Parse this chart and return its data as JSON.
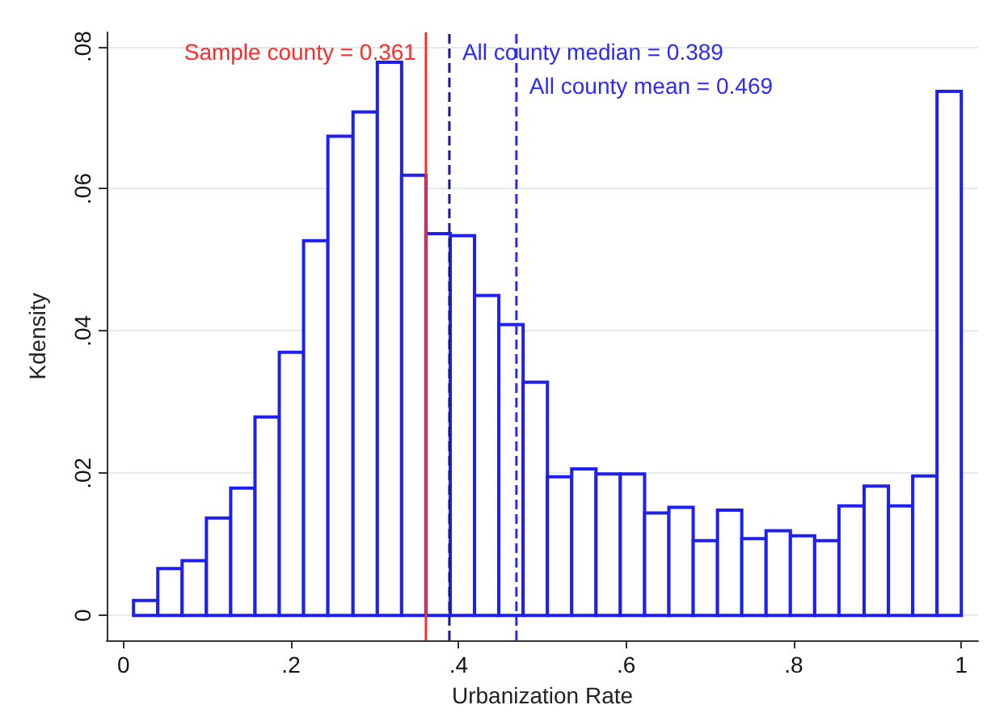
{
  "chart_data": {
    "type": "histogram",
    "xlabel": "Urbanization Rate",
    "ylabel": "Kdensity",
    "bins": [
      0.012,
      0.041,
      0.07,
      0.099,
      0.128,
      0.157,
      0.186,
      0.215,
      0.244,
      0.274,
      0.303,
      0.332,
      0.361,
      0.39,
      0.419,
      0.448,
      0.477,
      0.506,
      0.535,
      0.564,
      0.593,
      0.622,
      0.651,
      0.68,
      0.709,
      0.738,
      0.767,
      0.796,
      0.825,
      0.854,
      0.884,
      0.913,
      0.942,
      0.971,
      1.0
    ],
    "values": [
      0.0021,
      0.0066,
      0.0077,
      0.0137,
      0.0179,
      0.0279,
      0.037,
      0.0527,
      0.0674,
      0.0708,
      0.0778,
      0.0619,
      0.0537,
      0.0534,
      0.045,
      0.0409,
      0.0328,
      0.0195,
      0.0206,
      0.0199,
      0.0199,
      0.0144,
      0.0152,
      0.0105,
      0.0148,
      0.0108,
      0.0119,
      0.0112,
      0.0105,
      0.0154,
      0.0182,
      0.0154,
      0.0196,
      0.0737
    ],
    "color": "#1f1ff0",
    "xlim": [
      -0.02,
      1.02
    ],
    "ylim": [
      -0.0035,
      0.082
    ],
    "xticks": [
      0,
      {
        "value": 0.2,
        "label": ".2"
      },
      {
        "value": 0.4,
        "label": ".4"
      },
      {
        "value": 0.6,
        "label": ".6"
      },
      {
        "value": 0.8,
        "label": ".8"
      },
      1
    ],
    "yticks": [
      0,
      {
        "value": 0.02,
        "label": ".02"
      },
      {
        "value": 0.04,
        "label": ".04"
      },
      {
        "value": 0.06,
        "label": ".06"
      },
      {
        "value": 0.08,
        "label": ".08"
      }
    ],
    "grid": "y",
    "ref_lines": [
      {
        "axis": "x",
        "value": 0.361,
        "label": "Sample county = 0.361",
        "color": "#ff2a2a",
        "line_style": "solid"
      },
      {
        "axis": "x",
        "value": 0.389,
        "label": "All county median = 0.389",
        "color": "#1a1a8c",
        "line_style": "dashed"
      },
      {
        "axis": "x",
        "value": 0.469,
        "label": "All county mean = 0.469",
        "color": "#2a2aff",
        "line_style": "dashed"
      }
    ]
  }
}
